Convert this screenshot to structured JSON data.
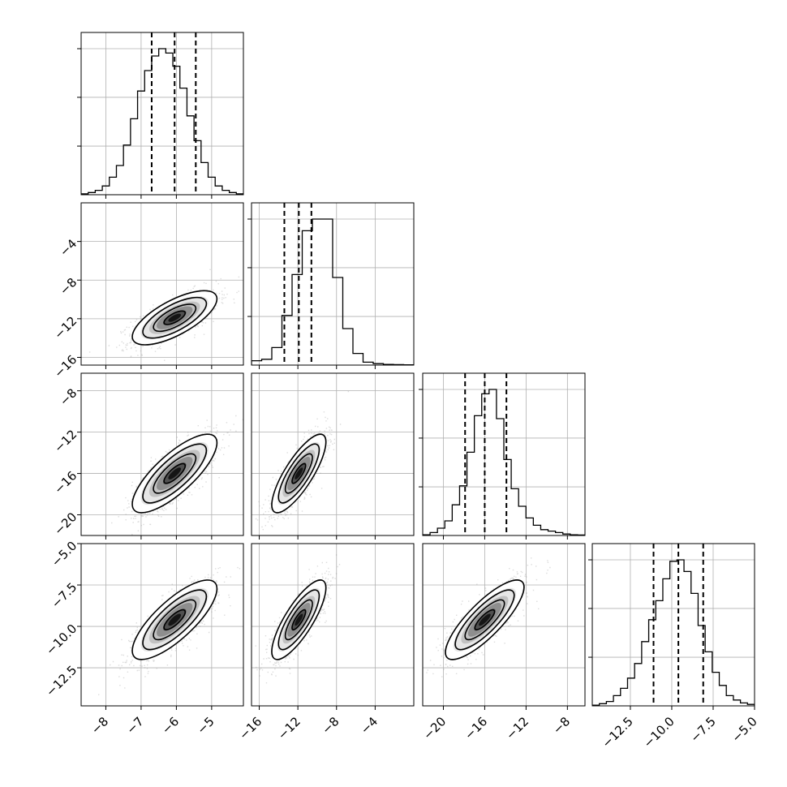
{
  "chart_data": {
    "type": "corner",
    "grid": true,
    "parameters": [
      {
        "range": [
          -8.7,
          -4.1
        ],
        "ticks": [
          -8,
          -7,
          -6,
          -5
        ],
        "tick_labels": [
          "−8",
          "−7",
          "−6",
          "−5"
        ],
        "quantiles": [
          -6.7,
          -6.05,
          -5.45
        ],
        "mean": -6.05,
        "sd": 0.6,
        "hist": [
          0.6,
          1.5,
          3,
          6,
          12,
          20,
          34,
          52,
          71,
          85,
          95,
          100,
          97,
          88,
          73,
          54,
          37,
          22,
          12,
          6,
          3,
          1.5,
          0.6
        ]
      },
      {
        "range": [
          -16.8,
          0
        ],
        "ticks": [
          -16,
          -12,
          -8,
          -4
        ],
        "tick_labels": [
          "−16",
          "−12",
          "−8",
          "−4"
        ],
        "quantiles": [
          -13.4,
          -11.9,
          -10.6
        ],
        "mean": -11.9,
        "sd": 1.4,
        "hist": [
          3,
          4,
          12,
          34,
          62,
          92,
          100,
          100,
          60,
          25,
          8,
          2,
          1,
          0.5,
          0.3,
          0.2
        ]
      },
      {
        "range": [
          -22,
          -6.3
        ],
        "ticks": [
          -20,
          -16,
          -12,
          -8
        ],
        "tick_labels": [
          "−20",
          "−16",
          "−12",
          "−8"
        ],
        "quantiles": [
          -17.9,
          -16,
          -13.9
        ],
        "mean": -16,
        "sd": 1.9,
        "hist": [
          0.5,
          2,
          5,
          10,
          21,
          34,
          57,
          82,
          97,
          100,
          80,
          52,
          32,
          20,
          12,
          7,
          4,
          3,
          2,
          1,
          0.5,
          0.3
        ]
      },
      {
        "range": [
          -14.8,
          -5
        ],
        "ticks": [
          -12.5,
          -10,
          -7.5,
          -5
        ],
        "tick_labels": [
          "−12.5",
          "−10.0",
          "−7.5",
          "−5.0"
        ],
        "quantiles": [
          -11.1,
          -9.6,
          -8.1
        ],
        "mean": -9.6,
        "sd": 1.2,
        "hist": [
          0.5,
          1.5,
          3,
          7,
          12,
          19,
          29,
          44,
          59,
          72,
          87,
          99,
          100,
          92,
          77,
          55,
          37,
          23,
          14,
          7,
          4,
          2,
          1
        ]
      }
    ],
    "correlations": [
      [
        1,
        0.7,
        0.78,
        0.78
      ],
      [
        0.7,
        1,
        0.8,
        0.8
      ],
      [
        0.78,
        0.8,
        1,
        0.82
      ],
      [
        0.78,
        0.8,
        0.82,
        1
      ]
    ]
  }
}
